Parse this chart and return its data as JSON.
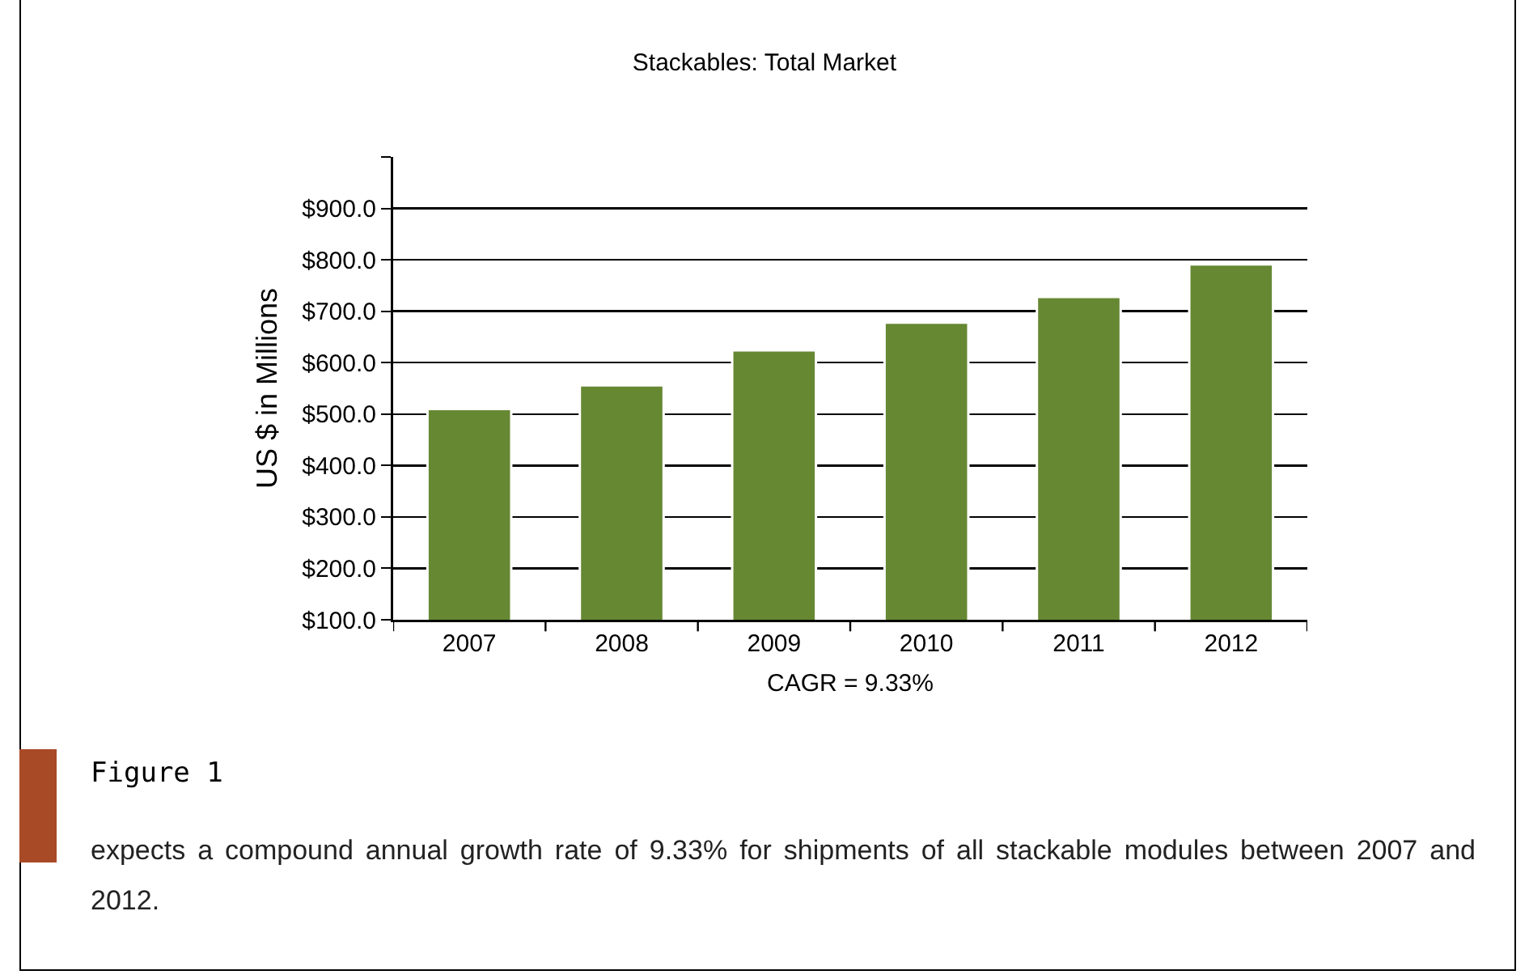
{
  "chart_data": {
    "type": "bar",
    "title": "Stackables: Total Market",
    "ylabel": "US $ in Millions",
    "categories": [
      "2007",
      "2008",
      "2009",
      "2010",
      "2011",
      "2012"
    ],
    "values": [
      510,
      556,
      624,
      678,
      728,
      791
    ],
    "color": "#668833",
    "ylim": [
      100,
      1000
    ],
    "yticks": [
      {
        "value": 100,
        "label": "$100.0"
      },
      {
        "value": 200,
        "label": "$200.0"
      },
      {
        "value": 300,
        "label": "$300.0"
      },
      {
        "value": 400,
        "label": "$400.0"
      },
      {
        "value": 500,
        "label": "$500.0"
      },
      {
        "value": 600,
        "label": "$600.0"
      },
      {
        "value": 700,
        "label": "$700.0"
      },
      {
        "value": 800,
        "label": "$800.0"
      },
      {
        "value": 900,
        "label": "$900.0"
      },
      {
        "value": 1000,
        "label": null
      }
    ],
    "grid": "y",
    "annotations": [
      "CAGR = 9.33%",
      "Figure 1",
      "expects a compound annual growth rate of 9.33% for shipments of all stackable modules between 2007 and 2012."
    ]
  }
}
